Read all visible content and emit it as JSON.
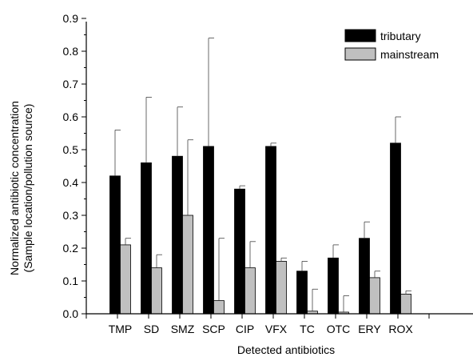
{
  "chart_data": {
    "type": "bar",
    "xlabel": "Detected antibiotics",
    "ylabel": [
      "Normalized antibiotic concentration",
      "(Sample location/pollution source)"
    ],
    "ylim": [
      0,
      0.9
    ],
    "yticks": [
      "0.0",
      "0.1",
      "0.2",
      "0.3",
      "0.4",
      "0.5",
      "0.6",
      "0.7",
      "0.8",
      "0.9"
    ],
    "categories": [
      "TMP",
      "SD",
      "SMZ",
      "SCP",
      "CIP",
      "VFX",
      "TC",
      "OTC",
      "ERY",
      "ROX"
    ],
    "series": [
      {
        "name": "tributary",
        "color": "#000000",
        "values": [
          0.42,
          0.46,
          0.48,
          0.51,
          0.38,
          0.51,
          0.13,
          0.17,
          0.23,
          0.52
        ],
        "error_upper": [
          0.56,
          0.66,
          0.63,
          0.84,
          0.39,
          0.52,
          0.16,
          0.21,
          0.28,
          0.6
        ]
      },
      {
        "name": "mainstream",
        "color": "#c0c0c0",
        "values": [
          0.21,
          0.14,
          0.3,
          0.04,
          0.14,
          0.16,
          0.008,
          0.005,
          0.11,
          0.06
        ],
        "error_upper": [
          0.23,
          0.18,
          0.53,
          0.23,
          0.22,
          0.17,
          0.075,
          0.055,
          0.13,
          0.07
        ]
      }
    ],
    "grid": false,
    "legend": "top-right"
  }
}
